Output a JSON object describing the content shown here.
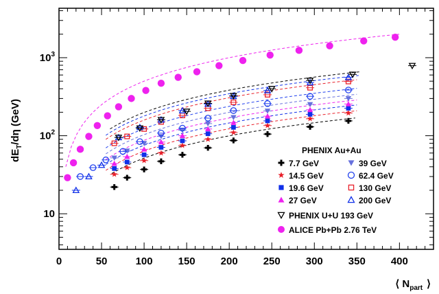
{
  "chart_data": {
    "type": "scatter",
    "xlabel": "⟨ N",
    "xlabel_sub": "part",
    "xlabel_close": "⟩",
    "ylabel": "dE",
    "ylabel_sub": "T",
    "ylabel_rest": "/dη (GeV)",
    "xlim": [
      0,
      440
    ],
    "ylim": [
      3.5,
      4300
    ],
    "yscale": "log",
    "x_ticks": [
      "0",
      "50",
      "100",
      "150",
      "200",
      "250",
      "300",
      "350",
      "400"
    ],
    "x_tick_values": [
      0,
      50,
      100,
      150,
      200,
      250,
      300,
      350,
      400
    ],
    "y_ticks": [
      "10",
      "10²",
      "10³"
    ],
    "y_tick_values": [
      10,
      100,
      1000
    ],
    "legend_title": "PHENIX Au+Au",
    "legend_position": "lower-right",
    "series": [
      {
        "name": "7.7 GeV",
        "marker": "cross",
        "color": "#000000",
        "x": [
          65,
          80,
          100,
          120,
          145,
          175,
          205,
          245,
          295,
          340
        ],
        "y": [
          22,
          29,
          37,
          47,
          57,
          70,
          87,
          105,
          130,
          155
        ],
        "fit": {
          "a": 0.65,
          "p": 0.95,
          "x0": 62,
          "x1": 348
        }
      },
      {
        "name": "14.5 GeV",
        "marker": "star",
        "color": "#e8202a",
        "x": [
          65,
          80,
          100,
          120,
          145,
          175,
          205,
          245,
          295,
          340
        ],
        "y": [
          32,
          39,
          48,
          60,
          75,
          90,
          110,
          135,
          165,
          195
        ],
        "fit": {
          "a": 0.8,
          "p": 0.95,
          "x0": 55,
          "x1": 350
        }
      },
      {
        "name": "19.6 GeV",
        "marker": "square",
        "color": "#1030e8",
        "x": [
          65,
          80,
          100,
          120,
          145,
          175,
          205,
          245,
          295,
          340
        ],
        "y": [
          38,
          46,
          57,
          71,
          86,
          106,
          128,
          155,
          188,
          225
        ],
        "fit": {
          "a": 0.95,
          "p": 0.95,
          "x0": 55,
          "x1": 350
        }
      },
      {
        "name": "27 GeV",
        "marker": "triangle",
        "color": "#ee22ee",
        "x": [
          65,
          80,
          100,
          120,
          145,
          175,
          205,
          245,
          295,
          340
        ],
        "y": [
          44,
          54,
          67,
          83,
          100,
          122,
          147,
          178,
          215,
          255
        ],
        "fit": {
          "a": 1.1,
          "p": 0.95,
          "x0": 55,
          "x1": 350
        }
      },
      {
        "name": "39 GeV",
        "marker": "triangle-down",
        "color": "#6670dd",
        "x": [
          65,
          80,
          100,
          120,
          145,
          175,
          205,
          245,
          295,
          340
        ],
        "y": [
          52,
          64,
          80,
          98,
          118,
          143,
          172,
          208,
          252,
          300
        ],
        "fit": {
          "a": 1.3,
          "p": 0.95,
          "x0": 55,
          "x1": 350
        }
      },
      {
        "name": "62.4 GeV",
        "marker": "circle-open",
        "color": "#2040ee",
        "x": [
          25,
          40,
          55,
          75,
          95,
          120,
          145,
          175,
          205,
          245,
          295,
          340
        ],
        "y": [
          30,
          39,
          49,
          63,
          84,
          108,
          125,
          168,
          210,
          258,
          320,
          385
        ],
        "fit": {
          "a": 1.55,
          "p": 0.95,
          "x0": 55,
          "x1": 350
        }
      },
      {
        "name": "130 GeV",
        "marker": "square-open",
        "color": "#e8202a",
        "x": [
          65,
          80,
          100,
          120,
          145,
          175,
          205,
          245,
          295,
          340
        ],
        "y": [
          80,
          98,
          122,
          150,
          182,
          225,
          268,
          335,
          412,
          495
        ],
        "fit": {
          "a": 2.0,
          "p": 0.95,
          "x0": 55,
          "x1": 350
        }
      },
      {
        "name": "200 GeV",
        "marker": "triangle-open",
        "color": "#1030e8",
        "x": [
          20,
          35,
          50,
          70,
          95,
          120,
          145,
          175,
          205,
          245,
          295,
          340
        ],
        "y": [
          20,
          30,
          42,
          95,
          128,
          160,
          210,
          255,
          320,
          380,
          480,
          560
        ],
        "fit": {
          "a": 2.25,
          "p": 0.95,
          "x0": 55,
          "x1": 352
        }
      },
      {
        "name": "PHENIX U+U 193 GeV",
        "marker": "triangle-down-open",
        "color": "#000000",
        "x": [
          70,
          95,
          120,
          150,
          175,
          205,
          250,
          295,
          345,
          415
        ],
        "y": [
          95,
          125,
          160,
          205,
          260,
          325,
          400,
          510,
          610,
          790
        ],
        "fit": {
          "a": 2.5,
          "p": 0.95,
          "x0": 60,
          "x1": 355
        }
      },
      {
        "name": "ALICE Pb+Pb 2.76 TeV",
        "marker": "circle",
        "color": "#ee22ee",
        "x": [
          10,
          17,
          25,
          35,
          45,
          57,
          70,
          85,
          102,
          120,
          140,
          162,
          188,
          216,
          248,
          282,
          318,
          358,
          395
        ],
        "y": [
          29,
          45,
          67,
          98,
          135,
          180,
          235,
          300,
          380,
          470,
          560,
          660,
          790,
          920,
          1080,
          1240,
          1420,
          1640,
          1830
        ],
        "fit": {
          "a": 5.0,
          "p": 1.0,
          "x0": 8,
          "x1": 400
        }
      }
    ]
  }
}
